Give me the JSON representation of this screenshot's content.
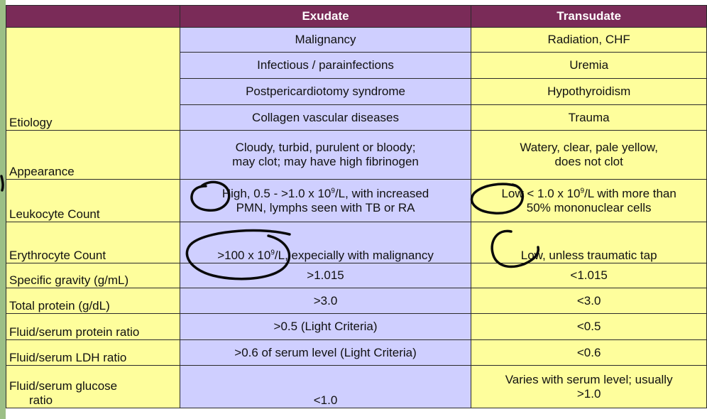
{
  "header": {
    "col_exudate": "Exudate",
    "col_transudate": "Transudate"
  },
  "etiology": {
    "label": "Etiology",
    "exudate": [
      "Malignancy",
      "Infectious / parainfections",
      "Postpericardiotomy syndrome",
      "Collagen vascular diseases"
    ],
    "transudate": [
      "Radiation, CHF",
      "Uremia",
      "Hypothyroidism",
      "Trauma"
    ]
  },
  "appearance": {
    "label": "Appearance",
    "exudate_line1": "Cloudy, turbid, purulent or bloody;",
    "exudate_line2": "may clot; may have high fibrinogen",
    "transudate_line1": "Watery, clear, pale yellow,",
    "transudate_line2": "does not clot"
  },
  "leukocyte": {
    "label": "Leukocyte Count",
    "exudate_pre": "High, 0.5 - >1.0 x 10",
    "exudate_sup": "9",
    "exudate_post": "/L, with increased",
    "exudate_line2": "PMN, lymphs seen with TB or RA",
    "transudate_pre": "Low < 1.0 x 10",
    "transudate_sup": "9",
    "transudate_post": "/L with more than",
    "transudate_line2": "50% mononuclear cells"
  },
  "erythrocyte": {
    "label": "Erythrocyte Count",
    "exudate_pre": ">100 x 10",
    "exudate_sup": "9",
    "exudate_post": "/L, expecially with malignancy",
    "transudate": "Low, unless traumatic tap"
  },
  "rows": [
    {
      "label": "Specific gravity (g/mL)",
      "exudate": ">1.015",
      "transudate": "<1.015"
    },
    {
      "label": "Total protein (g/dL)",
      "exudate": ">3.0",
      "transudate": "<3.0"
    },
    {
      "label": "Fluid/serum protein ratio",
      "exudate": ">0.5 (Light Criteria)",
      "transudate": "<0.5"
    },
    {
      "label": "Fluid/serum LDH ratio",
      "exudate": ">0.6 of serum level (Light Criteria)",
      "transudate": "<0.6"
    }
  ],
  "glucose": {
    "label_line1": "Fluid/serum glucose",
    "label_line2": "ratio",
    "exudate": "<1.0",
    "transudate_line1": "Varies with serum level; usually",
    "transudate_line2": ">1.0"
  }
}
